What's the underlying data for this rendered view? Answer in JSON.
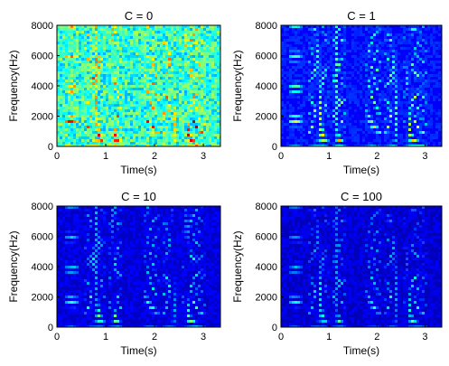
{
  "figure": {
    "layout": "2x2 grid of spectrogram panels",
    "colormap": "jet",
    "colormap_stops": [
      "#00008f",
      "#0000ff",
      "#00ffff",
      "#ffff00",
      "#ff0000",
      "#800000"
    ]
  },
  "chart_data": [
    {
      "type": "heatmap",
      "title": "C = 0",
      "xlabel": "Time(s)",
      "ylabel": "Frequency(Hz)",
      "xlim": [
        0,
        3.35
      ],
      "ylim": [
        0,
        8000
      ],
      "xticks": [
        "0",
        "1",
        "2",
        "3"
      ],
      "yticks": [
        "0",
        "2000",
        "4000",
        "6000",
        "8000"
      ],
      "background_level": 0.42,
      "intensity_scale": 1.0,
      "description_of_content": "speech spectrogram, harmonics visible"
    },
    {
      "type": "heatmap",
      "title": "C = 1",
      "xlabel": "Time(s)",
      "ylabel": "Frequency(Hz)",
      "xlim": [
        0,
        3.35
      ],
      "ylim": [
        0,
        8000
      ],
      "xticks": [
        "0",
        "1",
        "2",
        "3"
      ],
      "yticks": [
        "0",
        "2000",
        "4000",
        "6000",
        "8000"
      ],
      "background_level": 0.12,
      "intensity_scale": 0.62
    },
    {
      "type": "heatmap",
      "title": "C = 10",
      "xlabel": "Time(s)",
      "ylabel": "Frequency(Hz)",
      "xlim": [
        0,
        3.35
      ],
      "ylim": [
        0,
        8000
      ],
      "xticks": [
        "0",
        "1",
        "2",
        "3"
      ],
      "yticks": [
        "0",
        "2000",
        "4000",
        "6000",
        "8000"
      ],
      "background_level": 0.07,
      "intensity_scale": 0.45
    },
    {
      "type": "heatmap",
      "title": "C = 100",
      "xlabel": "Time(s)",
      "ylabel": "Frequency(Hz)",
      "xlim": [
        0,
        3.35
      ],
      "ylim": [
        0,
        8000
      ],
      "xticks": [
        "0",
        "1",
        "2",
        "3"
      ],
      "yticks": [
        "0",
        "2000",
        "4000",
        "6000",
        "8000"
      ],
      "background_level": 0.06,
      "intensity_scale": 0.4
    }
  ]
}
